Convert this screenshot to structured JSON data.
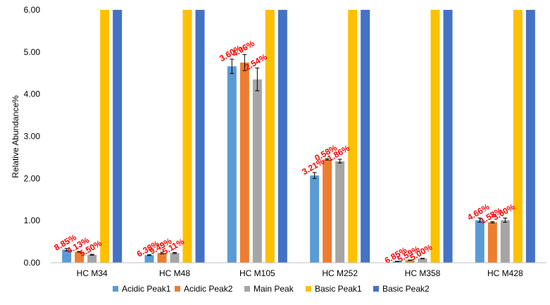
{
  "chart_data": {
    "type": "bar",
    "ylabel": "Relative Abundance%",
    "xlabel": "",
    "ylim": [
      0,
      6
    ],
    "yticks": [
      "0.00",
      "1.00",
      "2.00",
      "3.00",
      "4.00",
      "5.00",
      "6.00"
    ],
    "categories": [
      "HC M34",
      "HC M48",
      "HC M105",
      "HC M252",
      "HC M358",
      "HC M428"
    ],
    "legend_position": "bottom",
    "grid": false,
    "series": [
      {
        "name": "Acidic Peak1",
        "color": "#5b9bd5",
        "values": [
          0.31,
          0.18,
          4.66,
          2.07,
          0.03,
          1.01
        ],
        "errors": [
          0.03,
          0.01,
          0.17,
          0.07,
          0.005,
          0.05
        ]
      },
      {
        "name": "Acidic Peak2",
        "color": "#ed7d31",
        "values": [
          0.26,
          0.23,
          4.75,
          2.45,
          0.06,
          0.96
        ],
        "errors": [
          0.01,
          0.02,
          0.19,
          0.015,
          0.004,
          0.015
        ]
      },
      {
        "name": "Main Peak",
        "color": "#a5a5a5",
        "values": [
          0.19,
          0.23,
          4.35,
          2.41,
          0.1,
          1.01
        ],
        "errors": [
          0.01,
          0.012,
          0.27,
          0.045,
          0.005,
          0.05
        ]
      },
      {
        "name": "Basic Peak1",
        "color": "#ffc000",
        "values": [
          6.0,
          6.0,
          6.0,
          6.0,
          6.0,
          6.0
        ],
        "errors": [
          0,
          0,
          0,
          0,
          0,
          0
        ]
      },
      {
        "name": "Basic Peak2",
        "color": "#4472c4",
        "values": [
          6.0,
          6.0,
          6.0,
          6.0,
          6.0,
          6.0
        ],
        "errors": [
          0,
          0,
          0,
          0,
          0,
          0
        ]
      }
    ],
    "annotations": [
      [
        "8.85%",
        "4.13%",
        "5.50%"
      ],
      [
        "6.38%",
        "9.49%",
        "5.11%"
      ],
      [
        "3.60%",
        "4.06%",
        "2.54%"
      ],
      [
        "3.21%",
        "0.58%",
        "1.86%"
      ],
      [
        "6.85%",
        "5.59%",
        "5.00%"
      ],
      [
        "4.66%",
        "1.58%",
        "3.00%"
      ]
    ]
  }
}
